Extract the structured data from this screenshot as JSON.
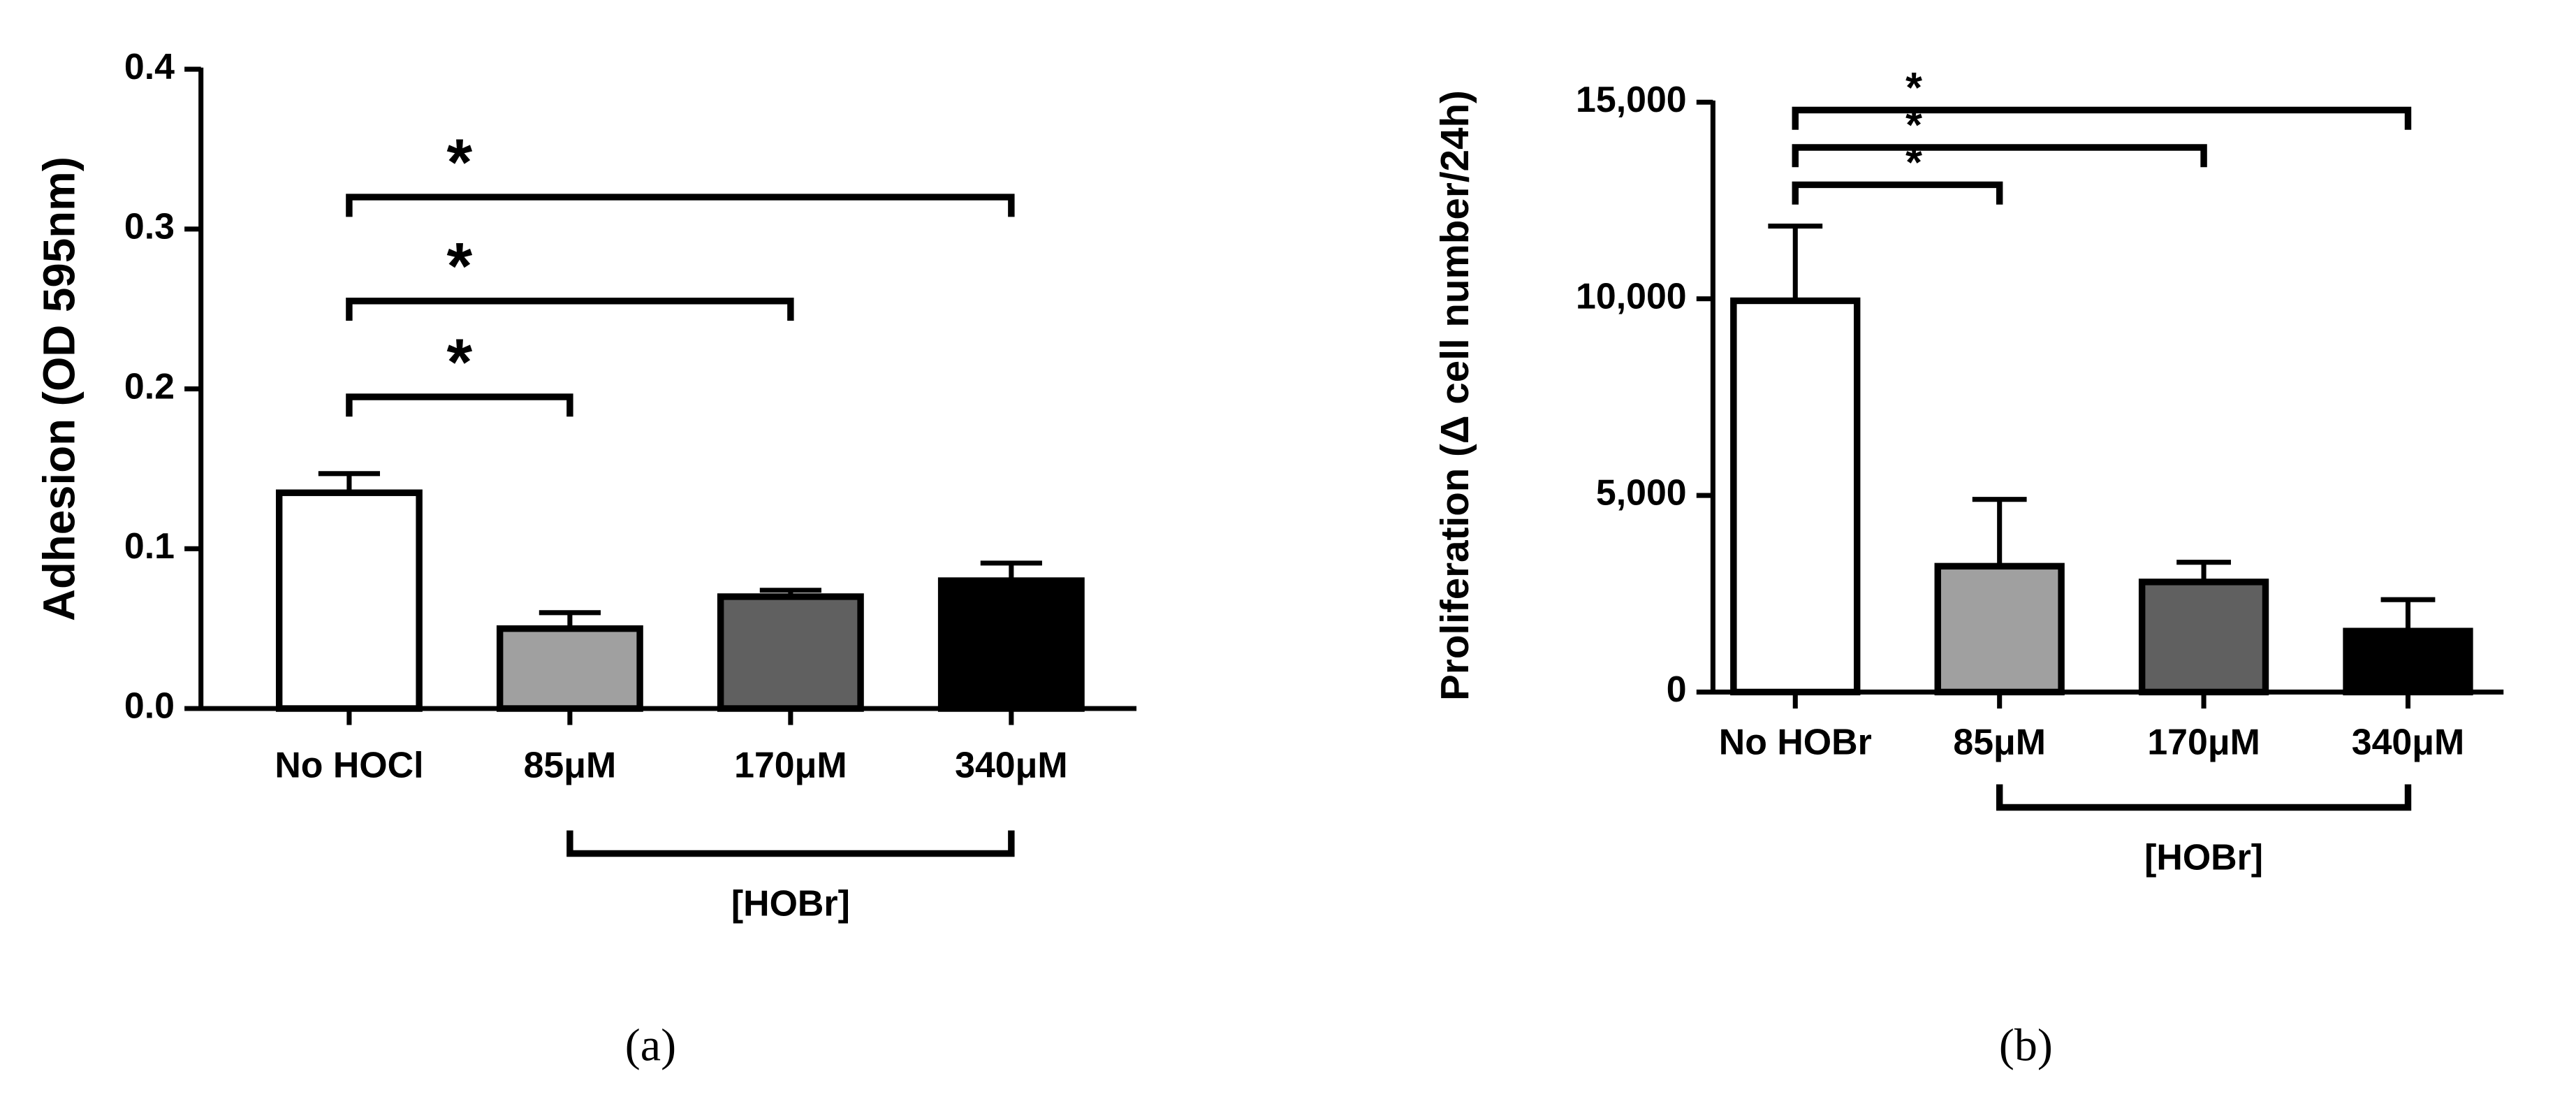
{
  "chart_data": [
    {
      "type": "bar",
      "panel_label": "(a)",
      "y_label": "Adhesion (OD 595nm)",
      "categories": [
        "No HOCl",
        "85μM",
        "170μM",
        "340μM"
      ],
      "values": [
        0.135,
        0.05,
        0.07,
        0.08
      ],
      "errors": [
        0.012,
        0.01,
        0.004,
        0.011
      ],
      "colors": [
        "#ffffff",
        "#a0a0a0",
        "#606060",
        "#000000"
      ],
      "ylim": [
        0,
        0.4
      ],
      "yticks": [
        {
          "value": 0,
          "label": "0.0"
        },
        0.1,
        0.2,
        0.3,
        0.4
      ],
      "annotations": [
        {
          "text": "*",
          "from": 0,
          "to": 1,
          "y": 0.195
        },
        {
          "text": "*",
          "from": 0,
          "to": 2,
          "y": 0.255
        },
        {
          "text": "*",
          "from": 0,
          "to": 3,
          "y": 0.32
        }
      ],
      "group": {
        "label": "[HOBr]",
        "from": 1,
        "to": 3
      }
    },
    {
      "type": "bar",
      "panel_label": "(b)",
      "y_label": "Proliferation (Δ cell number/24h)",
      "categories": [
        "No HOBr",
        "85μM",
        "170μM",
        "340μM"
      ],
      "values": [
        9950,
        3200,
        2800,
        1550
      ],
      "errors": [
        1900,
        1700,
        500,
        800
      ],
      "colors": [
        "#ffffff",
        "#a0a0a0",
        "#606060",
        "#000000"
      ],
      "ylim": [
        0,
        15000
      ],
      "yticks": [
        0,
        {
          "value": 5000,
          "label": "5,000"
        },
        {
          "value": 10000,
          "label": "10,000"
        },
        {
          "value": 15000,
          "label": "15,000"
        }
      ],
      "annotations": [
        {
          "text": "*",
          "from": 0,
          "to": 1,
          "y": 12900
        },
        {
          "text": "*",
          "from": 0,
          "to": 2,
          "y": 13850
        },
        {
          "text": "*",
          "from": 0,
          "to": 3,
          "y": 14800
        }
      ],
      "group": {
        "label": "[HOBr]",
        "from": 1,
        "to": 3
      }
    }
  ]
}
